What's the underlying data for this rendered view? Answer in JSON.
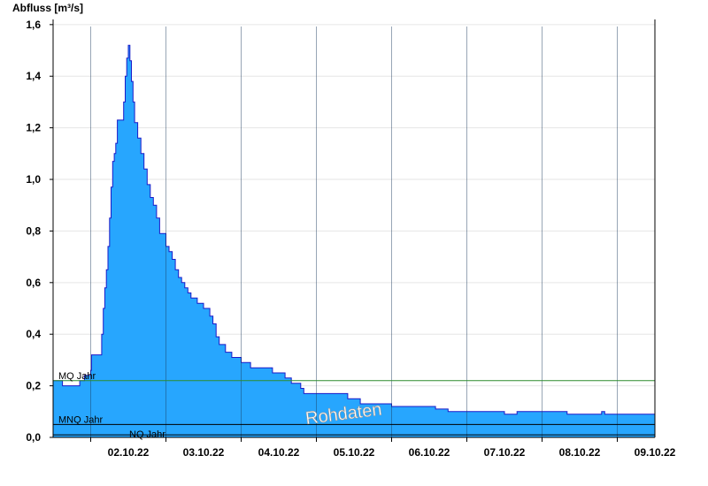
{
  "chart_data": {
    "type": "area",
    "ylabel": "Abfluss [m³/s]",
    "ylim": [
      0,
      1.62
    ],
    "yticks": [
      "0,0",
      "0,2",
      "0,4",
      "0,6",
      "0,8",
      "1,0",
      "1,2",
      "1,4",
      "1,6"
    ],
    "ytick_values": [
      0,
      0.2,
      0.4,
      0.6,
      0.8,
      1.0,
      1.2,
      1.4,
      1.6
    ],
    "xlim": [
      "2022-10-01T12:00",
      "2022-10-09T12:00"
    ],
    "xticks": [
      "02.10.22",
      "03.10.22",
      "04.10.22",
      "05.10.22",
      "06.10.22",
      "07.10.22",
      "08.10.22",
      "09.10.22"
    ],
    "xtick_values": [
      "2022-10-02T12:00",
      "2022-10-03T12:00",
      "2022-10-04T12:00",
      "2022-10-05T12:00",
      "2022-10-06T12:00",
      "2022-10-07T12:00",
      "2022-10-08T12:00",
      "2022-10-09T12:00"
    ],
    "day_lines": [
      "2022-10-02T00:00",
      "2022-10-03T00:00",
      "2022-10-04T00:00",
      "2022-10-05T00:00",
      "2022-10-06T00:00",
      "2022-10-07T00:00",
      "2022-10-08T00:00",
      "2022-10-09T00:00"
    ],
    "grid": true,
    "colors": {
      "fill": "#27a6fe",
      "line": "#1a1ac8",
      "mq": "#2e8b2e",
      "mnq": "#000000",
      "nq": "#000000"
    },
    "reference_lines": [
      {
        "label": "MQ Jahr",
        "value": 0.22
      },
      {
        "label": "MNQ Jahr",
        "value": 0.05
      },
      {
        "label": "NQ Jahr",
        "value": 0.01
      }
    ],
    "watermark": "Rohdaten",
    "series": [
      {
        "points": [
          [
            "2022-10-01T12:00",
            0.22
          ],
          [
            "2022-10-01T14:30",
            0.22
          ],
          [
            "2022-10-01T15:00",
            0.2
          ],
          [
            "2022-10-01T20:00",
            0.2
          ],
          [
            "2022-10-01T20:30",
            0.22
          ],
          [
            "2022-10-01T22:00",
            0.24
          ],
          [
            "2022-10-02T00:00",
            0.26
          ],
          [
            "2022-10-02T00:15",
            0.32
          ],
          [
            "2022-10-02T03:00",
            0.32
          ],
          [
            "2022-10-02T03:30",
            0.4
          ],
          [
            "2022-10-02T04:00",
            0.5
          ],
          [
            "2022-10-02T04:30",
            0.58
          ],
          [
            "2022-10-02T05:00",
            0.65
          ],
          [
            "2022-10-02T05:30",
            0.74
          ],
          [
            "2022-10-02T06:00",
            0.85
          ],
          [
            "2022-10-02T06:30",
            0.97
          ],
          [
            "2022-10-02T07:00",
            1.07
          ],
          [
            "2022-10-02T07:30",
            1.1
          ],
          [
            "2022-10-02T08:00",
            1.14
          ],
          [
            "2022-10-02T08:30",
            1.23
          ],
          [
            "2022-10-02T10:00",
            1.23
          ],
          [
            "2022-10-02T10:30",
            1.3
          ],
          [
            "2022-10-02T11:00",
            1.4
          ],
          [
            "2022-10-02T11:30",
            1.47
          ],
          [
            "2022-10-02T12:00",
            1.52
          ],
          [
            "2022-10-02T12:30",
            1.46
          ],
          [
            "2022-10-02T13:00",
            1.38
          ],
          [
            "2022-10-02T13:30",
            1.3
          ],
          [
            "2022-10-02T14:00",
            1.22
          ],
          [
            "2022-10-02T15:00",
            1.16
          ],
          [
            "2022-10-02T16:00",
            1.1
          ],
          [
            "2022-10-02T17:00",
            1.04
          ],
          [
            "2022-10-02T18:00",
            0.98
          ],
          [
            "2022-10-02T19:00",
            0.93
          ],
          [
            "2022-10-02T20:00",
            0.9
          ],
          [
            "2022-10-02T21:00",
            0.85
          ],
          [
            "2022-10-02T22:00",
            0.79
          ],
          [
            "2022-10-03T00:00",
            0.74
          ],
          [
            "2022-10-03T01:00",
            0.72
          ],
          [
            "2022-10-03T02:00",
            0.69
          ],
          [
            "2022-10-03T03:00",
            0.65
          ],
          [
            "2022-10-03T04:00",
            0.62
          ],
          [
            "2022-10-03T05:00",
            0.6
          ],
          [
            "2022-10-03T06:00",
            0.58
          ],
          [
            "2022-10-03T07:00",
            0.56
          ],
          [
            "2022-10-03T08:00",
            0.54
          ],
          [
            "2022-10-03T10:00",
            0.52
          ],
          [
            "2022-10-03T12:00",
            0.5
          ],
          [
            "2022-10-03T14:00",
            0.47
          ],
          [
            "2022-10-03T15:00",
            0.44
          ],
          [
            "2022-10-03T16:00",
            0.39
          ],
          [
            "2022-10-03T17:00",
            0.36
          ],
          [
            "2022-10-03T19:00",
            0.33
          ],
          [
            "2022-10-03T21:00",
            0.31
          ],
          [
            "2022-10-04T00:00",
            0.29
          ],
          [
            "2022-10-04T03:00",
            0.27
          ],
          [
            "2022-10-04T10:00",
            0.25
          ],
          [
            "2022-10-04T14:00",
            0.23
          ],
          [
            "2022-10-04T16:00",
            0.21
          ],
          [
            "2022-10-04T19:00",
            0.19
          ],
          [
            "2022-10-04T20:00",
            0.17
          ],
          [
            "2022-10-05T10:00",
            0.15
          ],
          [
            "2022-10-05T14:00",
            0.13
          ],
          [
            "2022-10-06T00:00",
            0.12
          ],
          [
            "2022-10-06T14:00",
            0.11
          ],
          [
            "2022-10-06T18:00",
            0.1
          ],
          [
            "2022-10-07T12:00",
            0.09
          ],
          [
            "2022-10-07T16:00",
            0.1
          ],
          [
            "2022-10-08T08:00",
            0.09
          ],
          [
            "2022-10-08T18:00",
            0.09
          ],
          [
            "2022-10-08T19:00",
            0.1
          ],
          [
            "2022-10-08T20:00",
            0.09
          ],
          [
            "2022-10-09T12:00",
            0.09
          ]
        ]
      }
    ]
  }
}
